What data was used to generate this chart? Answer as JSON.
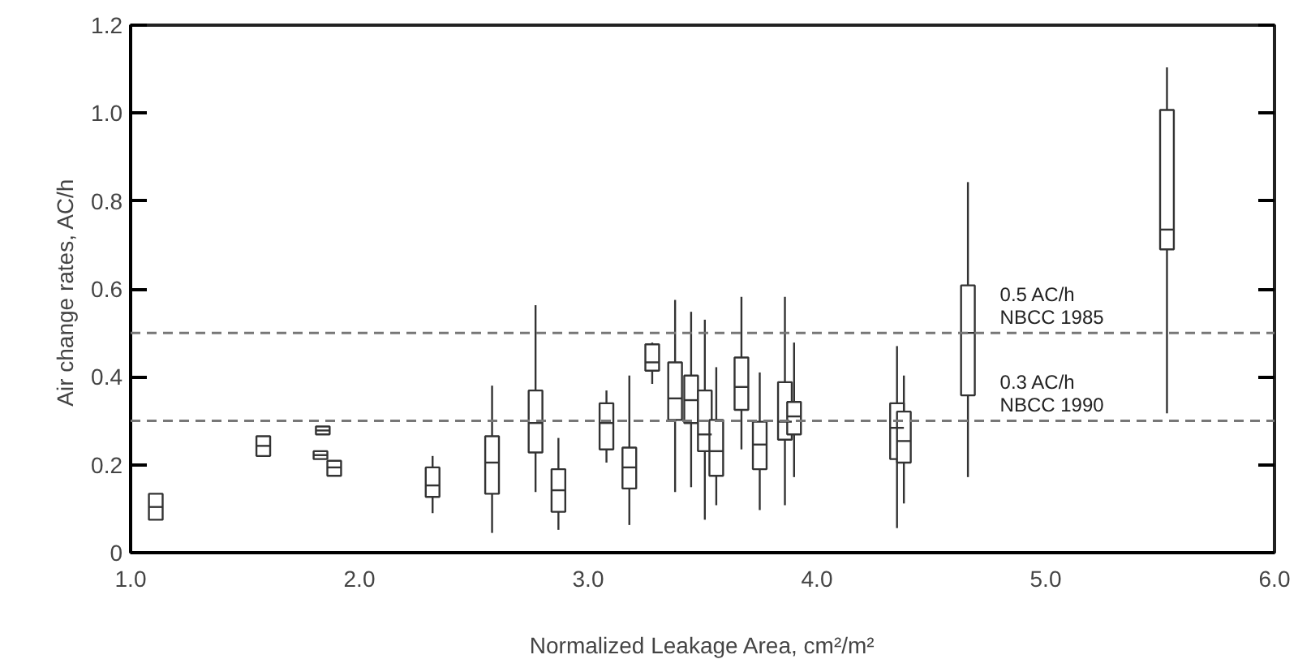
{
  "chart_data": {
    "type": "box",
    "xlabel": "Normalized Leakage Area, cm²/m²",
    "ylabel": "Air change rates,  AC/h",
    "x": [
      1.11,
      1.58,
      1.84,
      1.83,
      1.89,
      2.32,
      2.58,
      2.77,
      2.87,
      3.08,
      3.18,
      3.28,
      3.38,
      3.45,
      3.51,
      3.56,
      3.67,
      3.75,
      3.86,
      3.9,
      4.35,
      4.38,
      4.66,
      5.53
    ],
    "boxes": [
      {
        "low": 0.075,
        "q1": 0.075,
        "median": 0.104,
        "q3": 0.134,
        "high": 0.134
      },
      {
        "low": 0.22,
        "q1": 0.22,
        "median": 0.243,
        "q3": 0.265,
        "high": 0.265
      },
      {
        "low": 0.269,
        "q1": 0.269,
        "median": 0.278,
        "q3": 0.287,
        "high": 0.287
      },
      {
        "low": 0.213,
        "q1": 0.213,
        "median": 0.222,
        "q3": 0.231,
        "high": 0.231
      },
      {
        "low": 0.175,
        "q1": 0.175,
        "median": 0.194,
        "q3": 0.209,
        "high": 0.209
      },
      {
        "low": 0.09,
        "q1": 0.127,
        "median": 0.153,
        "q3": 0.194,
        "high": 0.22
      },
      {
        "low": 0.045,
        "q1": 0.134,
        "median": 0.205,
        "q3": 0.265,
        "high": 0.38
      },
      {
        "low": 0.138,
        "q1": 0.228,
        "median": 0.295,
        "q3": 0.369,
        "high": 0.563
      },
      {
        "low": 0.052,
        "q1": 0.093,
        "median": 0.142,
        "q3": 0.19,
        "high": 0.261
      },
      {
        "low": 0.205,
        "q1": 0.235,
        "median": 0.295,
        "q3": 0.34,
        "high": 0.369
      },
      {
        "low": 0.063,
        "q1": 0.146,
        "median": 0.194,
        "q3": 0.239,
        "high": 0.403
      },
      {
        "low": 0.384,
        "q1": 0.414,
        "median": 0.433,
        "q3": 0.474,
        "high": 0.478
      },
      {
        "low": 0.138,
        "q1": 0.302,
        "median": 0.351,
        "q3": 0.433,
        "high": 0.575
      },
      {
        "low": 0.149,
        "q1": 0.295,
        "median": 0.347,
        "q3": 0.403,
        "high": 0.548
      },
      {
        "low": 0.075,
        "q1": 0.231,
        "median": 0.269,
        "q3": 0.369,
        "high": 0.53
      },
      {
        "low": 0.108,
        "q1": 0.175,
        "median": 0.231,
        "q3": 0.302,
        "high": 0.422
      },
      {
        "low": 0.235,
        "q1": 0.325,
        "median": 0.377,
        "q3": 0.444,
        "high": 0.582
      },
      {
        "low": 0.097,
        "q1": 0.19,
        "median": 0.246,
        "q3": 0.298,
        "high": 0.41
      },
      {
        "low": 0.108,
        "q1": 0.257,
        "median": 0.298,
        "q3": 0.388,
        "high": 0.582
      },
      {
        "low": 0.172,
        "q1": 0.269,
        "median": 0.31,
        "q3": 0.343,
        "high": 0.478
      },
      {
        "low": 0.056,
        "q1": 0.213,
        "median": 0.284,
        "q3": 0.34,
        "high": 0.47
      },
      {
        "low": 0.112,
        "q1": 0.205,
        "median": 0.254,
        "q3": 0.321,
        "high": 0.403
      },
      {
        "low": 0.172,
        "q1": 0.358,
        "median": 0.5,
        "q3": 0.608,
        "high": 0.843
      },
      {
        "low": 0.317,
        "q1": 0.69,
        "median": 0.735,
        "q3": 1.007,
        "high": 1.104
      }
    ],
    "color": "#333333",
    "xlim": [
      1.0,
      6.0
    ],
    "xticks": [
      {
        "value": 1,
        "label": "1.0"
      },
      {
        "value": 2,
        "label": "2.0"
      },
      {
        "value": 3,
        "label": "3.0"
      },
      {
        "value": 4,
        "label": "4.0"
      },
      {
        "value": 5,
        "label": "5.0"
      },
      {
        "value": 6,
        "label": "6.0"
      }
    ],
    "ylim": [
      0,
      1.2
    ],
    "yticks": [
      0,
      0.2,
      0.4,
      0.6,
      0.8,
      {
        "value": 1,
        "label": "1.0"
      },
      1.2
    ],
    "ref_lines": [
      {
        "axis": "y",
        "value": 0.5,
        "label": "0.5 AC/h\nNBCC 1985",
        "color": "#777777",
        "line_style": "dashed"
      },
      {
        "axis": "y",
        "value": 0.3,
        "label": "0.3 AC/h\nNBCC 1990",
        "color": "#777777",
        "line_style": "dashed"
      }
    ],
    "grid": false
  }
}
